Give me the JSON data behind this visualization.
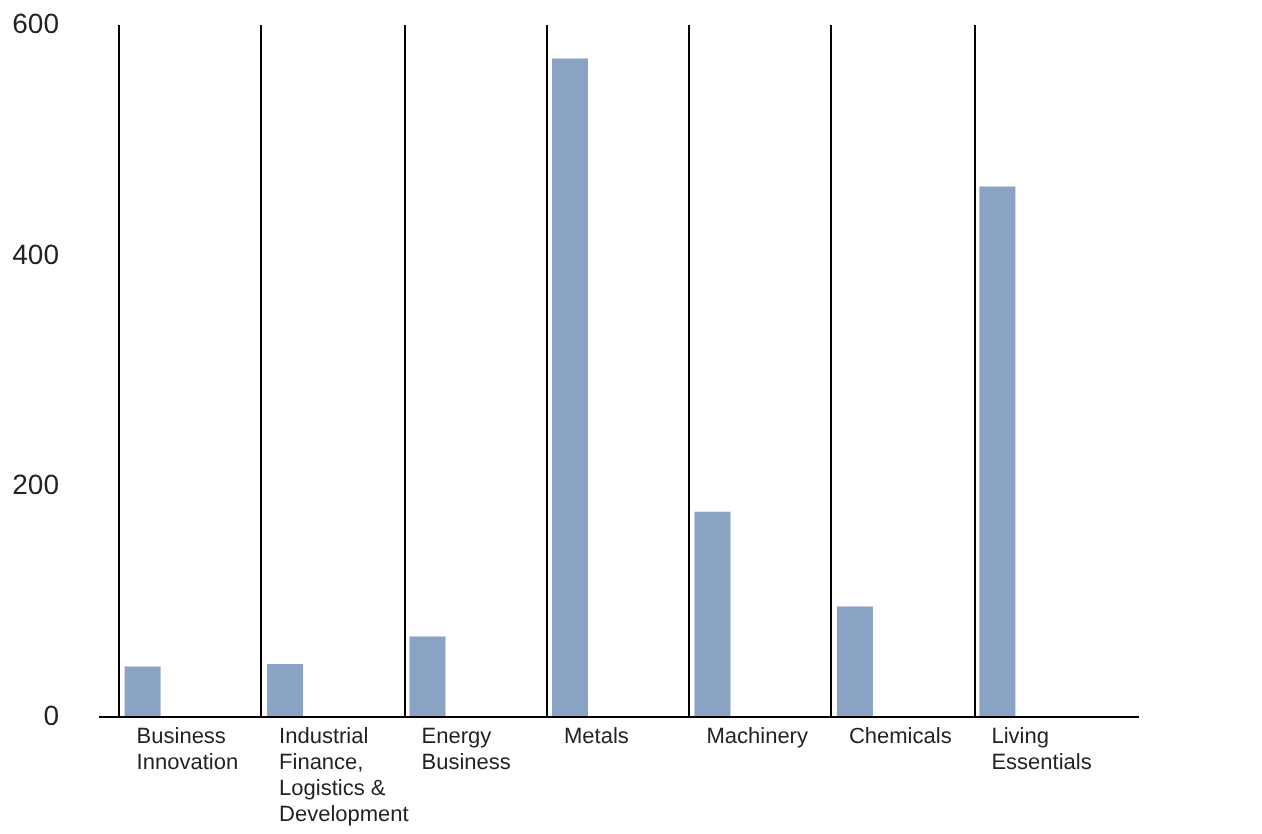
{
  "chart_data": {
    "type": "bar",
    "categories": [
      "Business Innovation",
      "Industrial Finance, Logistics & Development",
      "Energy Business",
      "Metals",
      "Machinery",
      "Chemicals",
      "Living Essentials"
    ],
    "values": [
      43,
      45,
      69,
      570,
      177,
      95,
      459
    ],
    "color": "#8aa2c4",
    "ylim": [
      0,
      600
    ],
    "yticks": [
      0,
      200,
      400,
      600
    ],
    "grid": "x"
  }
}
